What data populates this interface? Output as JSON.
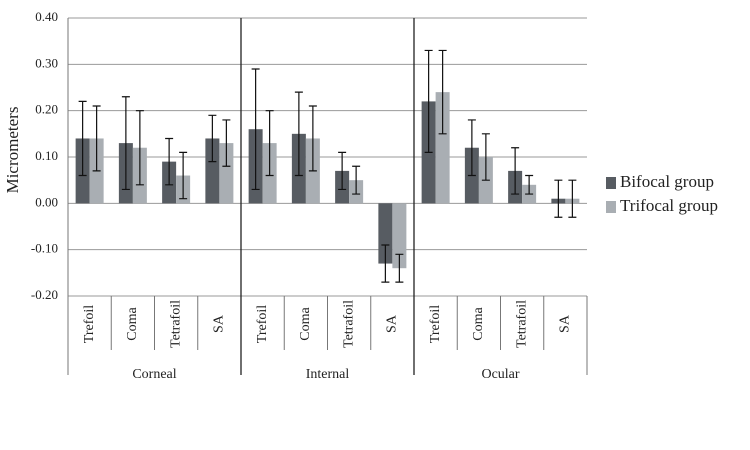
{
  "chart_data": {
    "type": "bar",
    "y_label": "Micrometers",
    "groups": [
      "Corneal",
      "Internal",
      "Ocular"
    ],
    "categories": [
      "Trefoil",
      "Coma",
      "Tetrafoil",
      "SA",
      "Trefoil",
      "Coma",
      "Tetrafoil",
      "SA",
      "Trefoil",
      "Coma",
      "Tetrafoil",
      "SA"
    ],
    "series": [
      {
        "name": "Bifocal group",
        "color": "#575c62",
        "values": [
          0.14,
          0.13,
          0.09,
          0.14,
          0.16,
          0.15,
          0.07,
          -0.13,
          0.22,
          0.12,
          0.07,
          0.01
        ],
        "errors": [
          0.08,
          0.1,
          0.05,
          0.05,
          0.13,
          0.09,
          0.04,
          0.04,
          0.11,
          0.06,
          0.05,
          0.04
        ]
      },
      {
        "name": "Trifocal group",
        "color": "#a9aeb3",
        "values": [
          0.14,
          0.12,
          0.06,
          0.13,
          0.13,
          0.14,
          0.05,
          -0.14,
          0.24,
          0.1,
          0.04,
          0.01
        ],
        "errors": [
          0.07,
          0.08,
          0.05,
          0.05,
          0.07,
          0.07,
          0.03,
          0.03,
          0.09,
          0.05,
          0.02,
          0.04
        ]
      }
    ],
    "ylim": [
      -0.2,
      0.4
    ],
    "yticks": [
      {
        "value": -0.2,
        "label": "-0.20"
      },
      {
        "value": -0.1,
        "label": "-0.10"
      },
      {
        "value": 0,
        "label": "0.00"
      },
      {
        "value": 0.1,
        "label": "0.10"
      },
      {
        "value": 0.2,
        "label": "0.20"
      },
      {
        "value": 0.3,
        "label": "0.30"
      },
      {
        "value": 0.4,
        "label": "0.40"
      }
    ],
    "grid": true,
    "legend": "right"
  }
}
